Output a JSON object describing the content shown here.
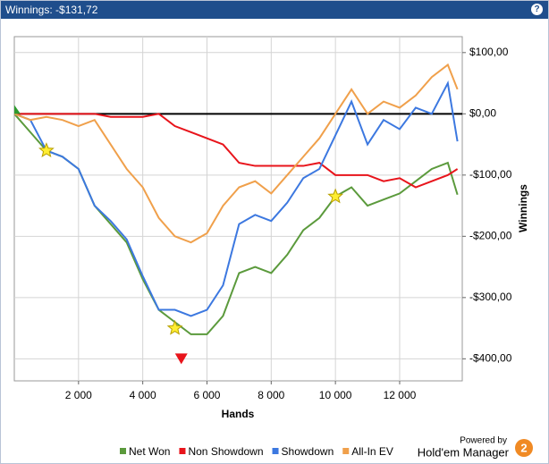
{
  "chart_data": {
    "type": "line",
    "title": "Winnings: -$131,72",
    "help": "?",
    "x_label": "Hands",
    "y_label": "Winnings",
    "xlim": [
      0,
      13950
    ],
    "ylim": [
      -436,
      126
    ],
    "xticks": [
      {
        "value": 2000,
        "label": "2 000"
      },
      {
        "value": 4000,
        "label": "4 000"
      },
      {
        "value": 6000,
        "label": "6 000"
      },
      {
        "value": 8000,
        "label": "8 000"
      },
      {
        "value": 10000,
        "label": "10 000"
      },
      {
        "value": 12000,
        "label": "12 000"
      }
    ],
    "yticks": [
      {
        "value": 100,
        "label": "$100,00"
      },
      {
        "value": 0,
        "label": "$0,00"
      },
      {
        "value": -100,
        "label": "-$100,00"
      },
      {
        "value": -200,
        "label": "-$200,00"
      },
      {
        "value": -300,
        "label": "-$300,00"
      },
      {
        "value": -400,
        "label": "-$400,00"
      }
    ],
    "grid": true,
    "zero_line": 0,
    "x": [
      0,
      500,
      1000,
      1500,
      2000,
      2500,
      3000,
      3500,
      4000,
      4500,
      5000,
      5500,
      6000,
      6500,
      7000,
      7500,
      8000,
      8500,
      9000,
      9500,
      10000,
      10500,
      11000,
      11500,
      12000,
      12500,
      13000,
      13500,
      13800
    ],
    "series": [
      {
        "name": "Net Won",
        "color": "#5b9a3c",
        "values": [
          0,
          -30,
          -60,
          -70,
          -90,
          -150,
          -180,
          -210,
          -270,
          -320,
          -340,
          -360,
          -360,
          -330,
          -260,
          -250,
          -260,
          -230,
          -190,
          -170,
          -135,
          -120,
          -150,
          -140,
          -130,
          -110,
          -90,
          -80,
          -132
        ]
      },
      {
        "name": "Non Showdown",
        "color": "#e8141b",
        "values": [
          0,
          0,
          0,
          0,
          0,
          0,
          -5,
          -5,
          -5,
          0,
          -20,
          -30,
          -40,
          -50,
          -80,
          -85,
          -85,
          -85,
          -85,
          -80,
          -100,
          -100,
          -100,
          -110,
          -105,
          -120,
          -110,
          -100,
          -90
        ]
      },
      {
        "name": "Showdown",
        "color": "#3c78e0",
        "values": [
          0,
          -10,
          -60,
          -70,
          -90,
          -150,
          -175,
          -205,
          -265,
          -320,
          -320,
          -330,
          -320,
          -280,
          -180,
          -165,
          -175,
          -145,
          -105,
          -90,
          -35,
          20,
          -50,
          -10,
          -25,
          10,
          0,
          50,
          -45
        ]
      },
      {
        "name": "All-In EV",
        "color": "#f0a04b",
        "values": [
          0,
          -10,
          -5,
          -10,
          -20,
          -10,
          -50,
          -90,
          -120,
          -170,
          -200,
          -210,
          -195,
          -150,
          -120,
          -110,
          -130,
          -100,
          -70,
          -40,
          0,
          40,
          0,
          20,
          10,
          30,
          60,
          80,
          40
        ]
      }
    ],
    "markers": [
      {
        "shape": "triangle-up",
        "color": "#2e9a2e",
        "x": 0,
        "y": 0
      },
      {
        "shape": "star",
        "color": "#ffee33",
        "x": 1000,
        "y": -60
      },
      {
        "shape": "star",
        "color": "#ffee33",
        "x": 5000,
        "y": -350
      },
      {
        "shape": "star",
        "color": "#ffee33",
        "x": 10000,
        "y": -135
      },
      {
        "shape": "triangle-down",
        "color": "#e8141b",
        "x": 5200,
        "y": -400
      }
    ],
    "branding": {
      "powered": "Powered by",
      "name": "Hold'em Manager",
      "badge": "2"
    }
  }
}
